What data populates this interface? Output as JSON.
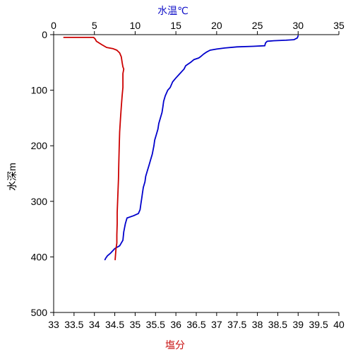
{
  "chart_data": {
    "type": "line",
    "title": "",
    "top_axis": {
      "label": "水温℃",
      "label_color": "#1010c8",
      "range": [
        0,
        35
      ],
      "ticks": [
        0,
        5,
        10,
        15,
        20,
        25,
        30,
        35
      ]
    },
    "bottom_axis": {
      "label": "塩分",
      "label_color": "#c81010",
      "range": [
        33,
        40
      ],
      "ticks": [
        "33",
        "33.5",
        "34",
        "34.5",
        "35",
        "35.5",
        "36",
        "36.5",
        "37",
        "37.5",
        "38",
        "38.5",
        "39",
        "39.5",
        "40"
      ]
    },
    "y_axis": {
      "label": "水深m",
      "range": [
        0,
        500
      ],
      "inverted": true,
      "ticks": [
        0,
        100,
        200,
        300,
        400,
        500
      ]
    },
    "grid": false,
    "series": [
      {
        "color": "#0000cc",
        "x_axis": "top",
        "points": [
          [
            30.0,
            2
          ],
          [
            29.9,
            6
          ],
          [
            29.5,
            9
          ],
          [
            28.5,
            10
          ],
          [
            27.0,
            11
          ],
          [
            26.2,
            12
          ],
          [
            26.0,
            15
          ],
          [
            25.9,
            20
          ],
          [
            24.5,
            21
          ],
          [
            22.5,
            22
          ],
          [
            21.0,
            24
          ],
          [
            20.0,
            26
          ],
          [
            19.2,
            28
          ],
          [
            18.8,
            31
          ],
          [
            18.4,
            35
          ],
          [
            18.0,
            40
          ],
          [
            17.8,
            42
          ],
          [
            17.2,
            45
          ],
          [
            16.8,
            50
          ],
          [
            16.2,
            56
          ],
          [
            16.0,
            62
          ],
          [
            15.5,
            70
          ],
          [
            15.0,
            78
          ],
          [
            14.6,
            85
          ],
          [
            14.3,
            95
          ],
          [
            14.0,
            100
          ],
          [
            13.7,
            110
          ],
          [
            13.5,
            120
          ],
          [
            13.4,
            130
          ],
          [
            13.3,
            140
          ],
          [
            13.1,
            150
          ],
          [
            12.9,
            160
          ],
          [
            12.8,
            170
          ],
          [
            12.6,
            180
          ],
          [
            12.4,
            190
          ],
          [
            12.3,
            200
          ],
          [
            12.1,
            215
          ],
          [
            11.9,
            225
          ],
          [
            11.7,
            235
          ],
          [
            11.5,
            245
          ],
          [
            11.3,
            255
          ],
          [
            11.2,
            265
          ],
          [
            11.0,
            275
          ],
          [
            10.9,
            285
          ],
          [
            10.8,
            295
          ],
          [
            10.7,
            305
          ],
          [
            10.6,
            315
          ],
          [
            10.4,
            322
          ],
          [
            9.8,
            326
          ],
          [
            9.0,
            330
          ],
          [
            8.8,
            340
          ],
          [
            8.6,
            355
          ],
          [
            8.5,
            370
          ],
          [
            8.1,
            380
          ],
          [
            7.5,
            385
          ],
          [
            7.0,
            393
          ],
          [
            6.6,
            398
          ],
          [
            6.4,
            402
          ],
          [
            6.3,
            405
          ]
        ]
      },
      {
        "color": "#cc0000",
        "x_axis": "bottom",
        "points": [
          [
            33.25,
            5
          ],
          [
            33.6,
            5
          ],
          [
            33.98,
            5
          ],
          [
            34.02,
            8
          ],
          [
            34.05,
            12
          ],
          [
            34.18,
            18
          ],
          [
            34.3,
            23
          ],
          [
            34.45,
            25
          ],
          [
            34.55,
            28
          ],
          [
            34.62,
            33
          ],
          [
            34.66,
            40
          ],
          [
            34.68,
            50
          ],
          [
            34.7,
            58
          ],
          [
            34.72,
            62
          ],
          [
            34.7,
            70
          ],
          [
            34.7,
            80
          ],
          [
            34.7,
            95
          ],
          [
            34.68,
            110
          ],
          [
            34.66,
            130
          ],
          [
            34.64,
            150
          ],
          [
            34.62,
            175
          ],
          [
            34.61,
            200
          ],
          [
            34.6,
            230
          ],
          [
            34.59,
            260
          ],
          [
            34.58,
            280
          ],
          [
            34.57,
            300
          ],
          [
            34.56,
            320
          ],
          [
            34.56,
            340
          ],
          [
            34.55,
            360
          ],
          [
            34.55,
            375
          ],
          [
            34.53,
            385
          ],
          [
            34.52,
            395
          ],
          [
            34.51,
            405
          ]
        ]
      }
    ]
  }
}
